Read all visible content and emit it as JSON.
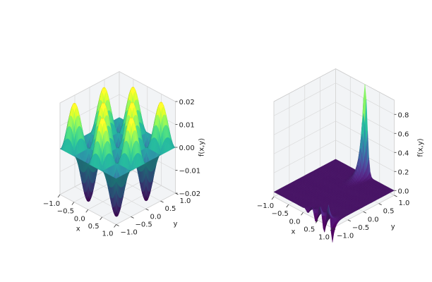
{
  "colormap": "viridis",
  "pane_colors": {
    "pane": "#f2f4f6",
    "grid": "#d8d8d8",
    "edge": "#c8c8c8"
  },
  "chart_data": [
    {
      "type": "surface",
      "function": "f(x,y) = 0.02·sin(2πx)·sin(2πy)",
      "xlabel": "x",
      "ylabel": "y",
      "zlabel": "f(x,y)",
      "xlim": [
        -1.0,
        1.0
      ],
      "ylim": [
        -1.0,
        1.0
      ],
      "zlim": [
        -0.02,
        0.02
      ],
      "xticks": [
        "−1.0",
        "−0.5",
        "0.0",
        "0.5",
        "1.0"
      ],
      "yticks": [
        "−1.0",
        "−0.5",
        "0.0",
        "0.5",
        "1.0"
      ],
      "zticks": [
        "−0.02",
        "−0.01",
        "0.00",
        "0.01",
        "0.02"
      ]
    },
    {
      "type": "surface",
      "function": "peak at (x,y) = (0, 1) ≈ 0.95; small ripples along y = -1 edge",
      "xlabel": "x",
      "ylabel": "y",
      "zlabel": "f(x,y)",
      "xlim": [
        -1.0,
        1.0
      ],
      "ylim": [
        -1.0,
        1.0
      ],
      "zlim": [
        -0.05,
        0.95
      ],
      "xticks": [
        "−1.0",
        "−0.5",
        "0.0",
        "0.5",
        "1.0"
      ],
      "yticks": [
        "−1.0",
        "−0.5",
        "0.0",
        "0.5",
        "1.0"
      ],
      "zticks": [
        "0.0",
        "0.2",
        "0.4",
        "0.6",
        "0.8"
      ]
    }
  ]
}
